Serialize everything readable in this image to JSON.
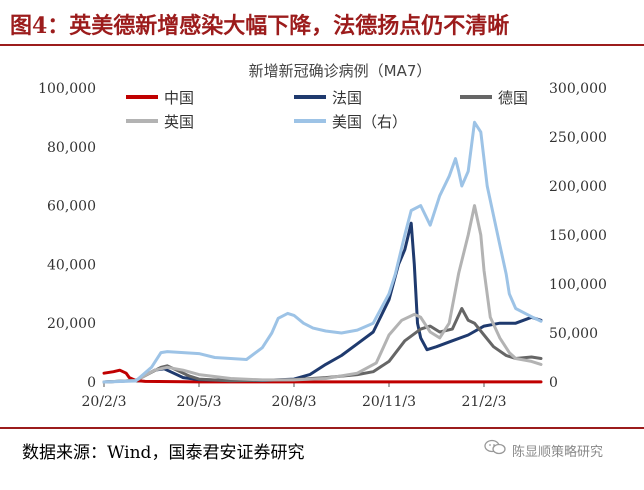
{
  "figure": {
    "title": "图4：英美德新增感染大幅下降，法德扬点仍不清晰",
    "source": "数据来源：Wind，国泰君安证券研究",
    "watermark": "陈显顺策略研究"
  },
  "chart_data": {
    "type": "line",
    "title": "新增新冠确诊病例（MA7）",
    "x_tick_labels": [
      "20/2/3",
      "20/5/3",
      "20/8/3",
      "20/11/3",
      "21/2/3"
    ],
    "x_tick_positions": [
      0,
      3,
      6,
      9,
      12
    ],
    "x_range": [
      0,
      13.8
    ],
    "y_left": {
      "range": [
        0,
        100000
      ],
      "ticks": [
        0,
        20000,
        40000,
        60000,
        80000,
        100000
      ],
      "tick_labels": [
        "0",
        "20,000",
        "40,000",
        "60,000",
        "80,000",
        "100,000"
      ]
    },
    "y_right": {
      "range": [
        0,
        300000
      ],
      "ticks": [
        0,
        50000,
        100000,
        150000,
        200000,
        250000,
        300000
      ],
      "tick_labels": [
        "0",
        "50,000",
        "100,000",
        "150,000",
        "200,000",
        "250,000",
        "300,000"
      ]
    },
    "legend_position": "top",
    "series": [
      {
        "name": "中国",
        "color": "#c00000",
        "axis": "left",
        "x": [
          0,
          0.3,
          0.5,
          0.7,
          0.8,
          1.0,
          1.3,
          3,
          6,
          9,
          12,
          13.8
        ],
        "y": [
          3000,
          3500,
          4000,
          3000,
          1500,
          500,
          200,
          50,
          50,
          50,
          50,
          50
        ]
      },
      {
        "name": "法国",
        "color": "#1f3a6e",
        "axis": "left",
        "x": [
          0,
          1,
          1.6,
          1.9,
          2.2,
          2.5,
          3,
          4,
          5,
          6,
          6.5,
          7,
          7.5,
          8,
          8.5,
          9,
          9.3,
          9.5,
          9.7,
          9.8,
          9.9,
          10,
          10.2,
          10.5,
          11,
          11.5,
          12,
          12.5,
          13,
          13.5,
          13.8
        ],
        "y": [
          0,
          500,
          4000,
          4500,
          3000,
          1500,
          800,
          500,
          500,
          1000,
          2500,
          6000,
          9000,
          13000,
          17000,
          28000,
          40000,
          45000,
          54000,
          40000,
          20000,
          15000,
          11000,
          12000,
          14000,
          16000,
          19000,
          20000,
          20000,
          22000,
          21000
        ]
      },
      {
        "name": "德国",
        "color": "#666666",
        "axis": "left",
        "x": [
          0,
          1,
          1.8,
          2,
          2.3,
          2.7,
          3,
          4,
          6,
          7,
          8,
          8.5,
          9,
          9.5,
          10,
          10.3,
          10.6,
          11,
          11.3,
          11.5,
          11.7,
          12,
          12.3,
          12.7,
          13,
          13.5,
          13.8
        ],
        "y": [
          0,
          500,
          5000,
          5500,
          4000,
          2000,
          1000,
          400,
          800,
          1500,
          2500,
          3500,
          7000,
          14000,
          18000,
          19000,
          17000,
          18000,
          25000,
          21000,
          20000,
          16000,
          12000,
          9000,
          8000,
          8500,
          8000
        ]
      },
      {
        "name": "英国",
        "color": "#b3b3b3",
        "axis": "left",
        "x": [
          0,
          1,
          1.6,
          2,
          2.5,
          3,
          4,
          5,
          6,
          7,
          8,
          8.6,
          9,
          9.4,
          9.8,
          10,
          10.3,
          10.6,
          10.9,
          11.2,
          11.5,
          11.7,
          11.9,
          12,
          12.2,
          12.5,
          12.8,
          13,
          13.5,
          13.8
        ],
        "y": [
          0,
          500,
          4000,
          5000,
          4000,
          2500,
          1200,
          700,
          700,
          1200,
          3000,
          6500,
          16000,
          21000,
          23000,
          22000,
          17000,
          15000,
          20000,
          37000,
          50000,
          60000,
          50000,
          38000,
          22000,
          15000,
          10000,
          8000,
          7000,
          6000
        ]
      },
      {
        "name": "美国（右）",
        "color": "#9dc3e6",
        "axis": "right",
        "x": [
          0,
          1,
          1.5,
          1.8,
          2,
          2.5,
          3,
          3.5,
          4,
          4.5,
          5,
          5.3,
          5.5,
          5.8,
          6,
          6.3,
          6.6,
          7,
          7.5,
          8,
          8.5,
          9,
          9.2,
          9.5,
          9.7,
          10,
          10.3,
          10.6,
          10.9,
          11.1,
          11.2,
          11.3,
          11.5,
          11.7,
          11.9,
          12.1,
          12.3,
          12.5,
          12.7,
          12.8,
          13,
          13.3,
          13.6,
          13.8
        ],
        "y": [
          0,
          1000,
          15000,
          30000,
          31000,
          30000,
          29000,
          25000,
          24000,
          23000,
          35000,
          50000,
          65000,
          70000,
          68000,
          60000,
          55000,
          52000,
          50000,
          53000,
          60000,
          90000,
          110000,
          150000,
          175000,
          180000,
          160000,
          190000,
          210000,
          228000,
          215000,
          200000,
          215000,
          265000,
          255000,
          200000,
          170000,
          140000,
          110000,
          90000,
          75000,
          70000,
          65000,
          62000
        ]
      }
    ]
  }
}
